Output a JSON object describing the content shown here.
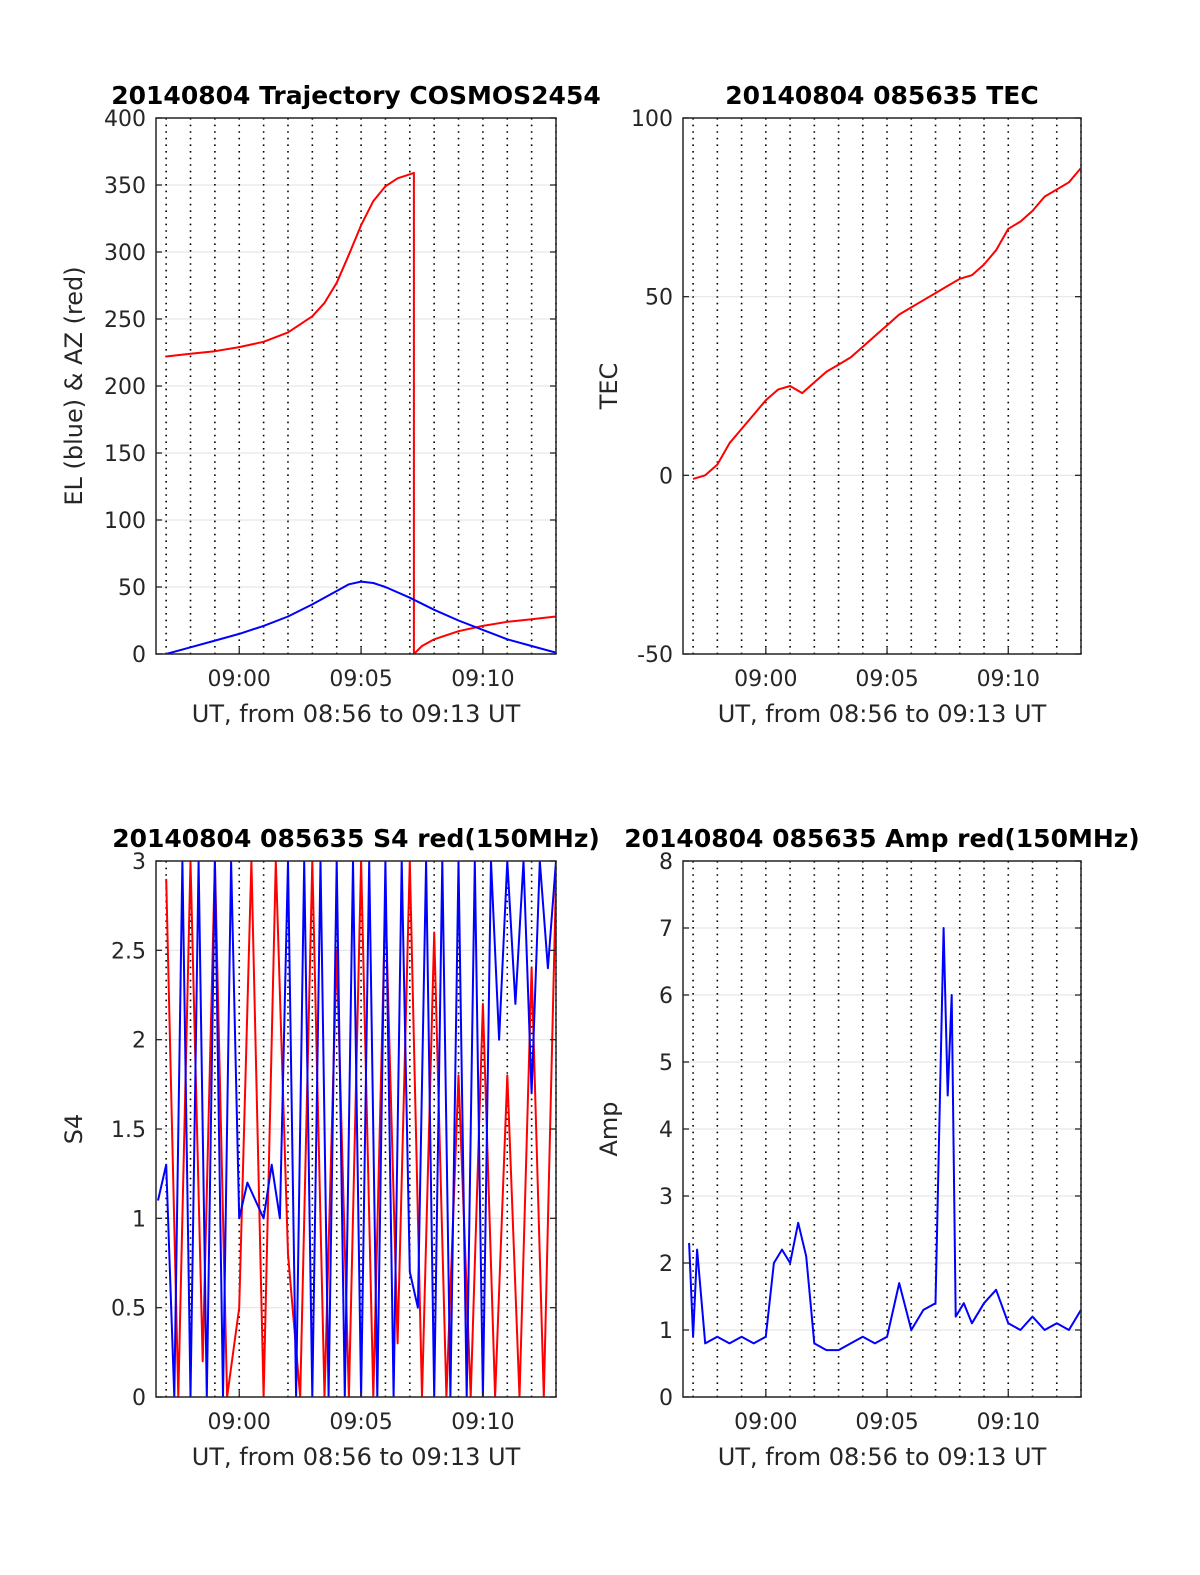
{
  "chart_data": [
    {
      "type": "line",
      "title": "20140804 Trajectory COSMOS2454",
      "xlabel": "UT, from 08:56 to 09:13 UT",
      "ylabel": "EL (blue) & AZ (red)",
      "xlim": [
        "08:56:35",
        "09:13:00"
      ],
      "ylim": [
        0,
        400
      ],
      "x_ticks": [
        "09:00",
        "09:05",
        "09:10"
      ],
      "y_ticks": [
        "0",
        "50",
        "100",
        "150",
        "200",
        "250",
        "300",
        "350",
        "400"
      ],
      "grid": true,
      "series": [
        {
          "color": "#ff0000",
          "x": [
            "08:57:00",
            "08:58:00",
            "08:59:00",
            "09:00:00",
            "09:01:00",
            "09:02:00",
            "09:03:00",
            "09:03:30",
            "09:04:00",
            "09:04:30",
            "09:05:00",
            "09:05:30",
            "09:06:00",
            "09:06:30",
            "09:07:00",
            "09:07:10",
            "09:07:10",
            "09:07:30",
            "09:08:00",
            "09:09:00",
            "09:10:00",
            "09:11:00",
            "09:12:00",
            "09:13:00"
          ],
          "values": [
            222,
            224,
            226,
            229,
            233,
            240,
            252,
            262,
            277,
            298,
            320,
            338,
            349,
            355,
            358,
            359,
            0,
            6,
            11,
            17,
            21,
            24,
            26,
            28
          ]
        },
        {
          "color": "#0000ff",
          "x": [
            "08:57:00",
            "08:58:00",
            "08:59:00",
            "09:00:00",
            "09:01:00",
            "09:02:00",
            "09:03:00",
            "09:04:00",
            "09:04:30",
            "09:05:00",
            "09:05:30",
            "09:06:00",
            "09:07:00",
            "09:08:00",
            "09:09:00",
            "09:10:00",
            "09:11:00",
            "09:12:00",
            "09:13:00"
          ],
          "values": [
            0,
            5,
            10,
            15,
            21,
            28,
            37,
            47,
            52,
            54,
            53,
            50,
            42,
            33,
            25,
            18,
            11,
            6,
            1
          ]
        }
      ]
    },
    {
      "type": "line",
      "title": "20140804 085635 TEC",
      "xlabel": "UT, from 08:56 to 09:13 UT",
      "ylabel": "TEC",
      "xlim": [
        "08:56:35",
        "09:13:00"
      ],
      "ylim": [
        -50,
        100
      ],
      "x_ticks": [
        "09:00",
        "09:05",
        "09:10"
      ],
      "y_ticks": [
        "-50",
        "0",
        "50",
        "100"
      ],
      "grid": true,
      "series": [
        {
          "color": "#ff0000",
          "x": [
            "08:57:00",
            "08:57:30",
            "08:58:00",
            "08:58:30",
            "08:59:00",
            "08:59:30",
            "09:00:00",
            "09:00:30",
            "09:01:00",
            "09:01:30",
            "09:02:00",
            "09:02:30",
            "09:03:00",
            "09:03:30",
            "09:04:00",
            "09:04:30",
            "09:05:00",
            "09:05:30",
            "09:06:00",
            "09:06:30",
            "09:07:00",
            "09:07:30",
            "09:08:00",
            "09:08:30",
            "09:09:00",
            "09:09:30",
            "09:10:00",
            "09:10:30",
            "09:11:00",
            "09:11:30",
            "09:12:00",
            "09:12:30",
            "09:13:00"
          ],
          "values": [
            -1,
            0,
            3,
            9,
            13,
            17,
            21,
            24,
            25,
            23,
            26,
            29,
            31,
            33,
            36,
            39,
            42,
            45,
            47,
            49,
            51,
            53,
            55,
            56,
            59,
            63,
            69,
            71,
            74,
            78,
            80,
            82,
            86
          ]
        }
      ]
    },
    {
      "type": "line",
      "title": "20140804 085635 S4 red(150MHz)",
      "xlabel": "UT, from 08:56 to 09:13 UT",
      "ylabel": "S4",
      "xlim": [
        "08:56:35",
        "09:13:00"
      ],
      "ylim": [
        0,
        3
      ],
      "x_ticks": [
        "09:00",
        "09:05",
        "09:10"
      ],
      "y_ticks": [
        "0",
        "0.5",
        "1",
        "1.5",
        "2",
        "2.5",
        "3"
      ],
      "grid": true,
      "series": [
        {
          "color": "#ff0000",
          "x": [
            "08:57:00",
            "08:57:30",
            "08:58:00",
            "08:58:30",
            "08:59:00",
            "08:59:30",
            "09:00:00",
            "09:00:30",
            "09:01:00",
            "09:01:30",
            "09:02:00",
            "09:02:30",
            "09:03:00",
            "09:03:30",
            "09:04:00",
            "09:04:30",
            "09:05:00",
            "09:05:30",
            "09:06:00",
            "09:06:30",
            "09:07:00",
            "09:07:30",
            "09:08:00",
            "09:08:30",
            "09:09:00",
            "09:09:30",
            "09:10:00",
            "09:10:30",
            "09:11:00",
            "09:11:30",
            "09:12:00",
            "09:12:30",
            "09:13:00"
          ],
          "values": [
            2.9,
            0,
            3,
            0.2,
            3,
            0,
            0.5,
            3,
            0,
            3,
            0.8,
            0,
            3,
            0,
            2.5,
            0,
            3,
            0,
            2.8,
            0.3,
            3,
            0,
            2.6,
            0,
            1.8,
            0,
            2.2,
            0,
            1.8,
            0,
            2.4,
            0,
            2.9
          ]
        },
        {
          "color": "#0000ff",
          "x": [
            "08:56:40",
            "08:57:00",
            "08:57:20",
            "08:57:40",
            "08:58:00",
            "08:58:20",
            "08:58:40",
            "08:59:00",
            "08:59:20",
            "08:59:40",
            "09:00:00",
            "09:00:20",
            "09:00:40",
            "09:01:00",
            "09:01:20",
            "09:01:40",
            "09:02:00",
            "09:02:20",
            "09:02:40",
            "09:03:00",
            "09:03:20",
            "09:03:40",
            "09:04:00",
            "09:04:20",
            "09:04:40",
            "09:05:00",
            "09:05:20",
            "09:05:40",
            "09:06:00",
            "09:06:20",
            "09:06:40",
            "09:07:00",
            "09:07:20",
            "09:07:40",
            "09:08:00",
            "09:08:20",
            "09:08:40",
            "09:09:00",
            "09:09:20",
            "09:09:40",
            "09:10:00",
            "09:10:20",
            "09:10:40",
            "09:11:00",
            "09:11:20",
            "09:11:40",
            "09:12:00",
            "09:12:20",
            "09:12:40",
            "09:13:00"
          ],
          "values": [
            1.1,
            1.3,
            0,
            3,
            0,
            3,
            0,
            3,
            0,
            3,
            1.0,
            1.2,
            1.1,
            1.0,
            1.3,
            1.0,
            3,
            0,
            3,
            0,
            3,
            0,
            3,
            0,
            3,
            0,
            3,
            0,
            3,
            0,
            3,
            0.7,
            0.5,
            3,
            0,
            3,
            0,
            3,
            0,
            3,
            0,
            3,
            2.0,
            3,
            2.2,
            3,
            1.7,
            3,
            2.4,
            3
          ]
        }
      ]
    },
    {
      "type": "line",
      "title": "20140804 085635 Amp red(150MHz)",
      "xlabel": "UT, from 08:56 to 09:13 UT",
      "ylabel": "Amp",
      "xlim": [
        "08:56:35",
        "09:13:00"
      ],
      "ylim": [
        0,
        8
      ],
      "x_ticks": [
        "09:00",
        "09:05",
        "09:10"
      ],
      "y_ticks": [
        "0",
        "1",
        "2",
        "3",
        "4",
        "5",
        "6",
        "7",
        "8"
      ],
      "grid": true,
      "series": [
        {
          "color": "#0000ff",
          "x": [
            "08:56:50",
            "08:57:00",
            "08:57:10",
            "08:57:30",
            "08:58:00",
            "08:58:30",
            "08:59:00",
            "08:59:30",
            "09:00:00",
            "09:00:20",
            "09:00:40",
            "09:01:00",
            "09:01:20",
            "09:01:40",
            "09:02:00",
            "09:02:30",
            "09:03:00",
            "09:03:30",
            "09:04:00",
            "09:04:30",
            "09:05:00",
            "09:05:30",
            "09:06:00",
            "09:06:30",
            "09:07:00",
            "09:07:20",
            "09:07:30",
            "09:07:40",
            "09:07:50",
            "09:08:10",
            "09:08:30",
            "09:09:00",
            "09:09:30",
            "09:10:00",
            "09:10:30",
            "09:11:00",
            "09:11:30",
            "09:12:00",
            "09:12:30",
            "09:13:00"
          ],
          "values": [
            2.3,
            0.9,
            2.2,
            0.8,
            0.9,
            0.8,
            0.9,
            0.8,
            0.9,
            2.0,
            2.2,
            2.0,
            2.6,
            2.1,
            0.8,
            0.7,
            0.7,
            0.8,
            0.9,
            0.8,
            0.9,
            1.7,
            1.0,
            1.3,
            1.4,
            7.0,
            4.5,
            6.0,
            1.2,
            1.4,
            1.1,
            1.4,
            1.6,
            1.1,
            1.0,
            1.2,
            1.0,
            1.1,
            1.0,
            1.3
          ]
        }
      ]
    }
  ]
}
